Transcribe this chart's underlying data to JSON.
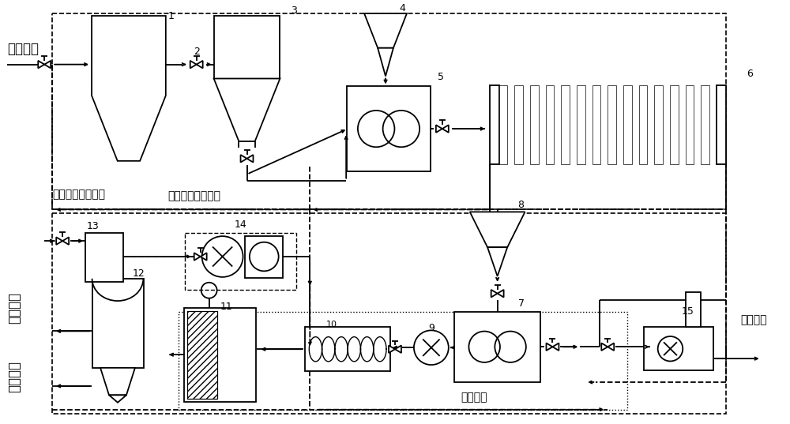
{
  "bg_color": "#ffffff",
  "lc": "#000000",
  "lw": 1.3,
  "figsize": [
    10.0,
    5.37
  ],
  "labels": {
    "city_water": "城市污水",
    "filtrate": "滤液、上清液回流",
    "liquid_product": "液相产物",
    "solid_product": "固相产物",
    "power": "电力输送",
    "outside": "外运填埋"
  }
}
